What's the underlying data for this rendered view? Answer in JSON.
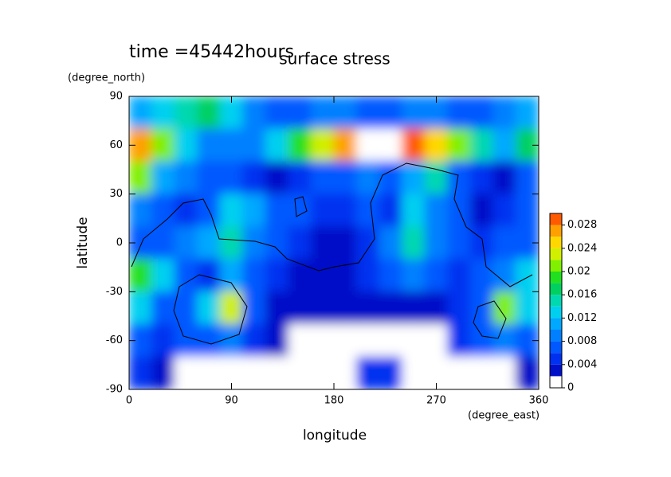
{
  "chart_data": {
    "type": "contour",
    "time_label": "time =45442hours",
    "title": "surface stress",
    "y_units": "(degree_north)",
    "x_units": "(degree_east)",
    "xlabel": "longitude",
    "ylabel": "latitude",
    "xlim": [
      0,
      360
    ],
    "ylim": [
      -90,
      90
    ],
    "xticks": [
      0,
      90,
      180,
      270,
      360
    ],
    "yticks": [
      -90,
      -60,
      -30,
      0,
      30,
      60,
      90
    ],
    "lon": [
      0,
      20,
      40,
      60,
      80,
      100,
      120,
      140,
      160,
      180,
      200,
      220,
      240,
      260,
      280,
      300,
      320,
      340,
      360
    ],
    "lat": [
      90,
      70,
      50,
      30,
      10,
      -10,
      -30,
      -50,
      -70,
      -90
    ],
    "z": [
      [
        0.01,
        0.012,
        0.014,
        0.016,
        0.012,
        0.008,
        0.006,
        0.006,
        0.008,
        0.008,
        0.006,
        0.006,
        0.008,
        0.008,
        0.006,
        0.006,
        0.008,
        0.01
      ],
      [
        0.026,
        0.02,
        0.012,
        0.008,
        0.008,
        0.008,
        0.012,
        0.018,
        0.022,
        0.026,
        0.032,
        0.032,
        0.028,
        0.024,
        0.02,
        0.014,
        0.01,
        0.016
      ],
      [
        0.02,
        0.01,
        0.008,
        0.006,
        0.006,
        0.004,
        0.002,
        0.004,
        0.006,
        0.006,
        0.008,
        0.006,
        0.01,
        0.014,
        0.006,
        0.004,
        0.002,
        0.006
      ],
      [
        0.008,
        0.006,
        0.004,
        0.006,
        0.012,
        0.01,
        0.006,
        0.006,
        0.004,
        0.004,
        0.006,
        0.004,
        0.012,
        0.008,
        0.006,
        0.002,
        0.004,
        0.006
      ],
      [
        0.006,
        0.006,
        0.008,
        0.01,
        0.014,
        0.008,
        0.006,
        0.004,
        0.002,
        0.002,
        0.004,
        0.008,
        0.014,
        0.008,
        0.006,
        0.004,
        0.006,
        0.006
      ],
      [
        0.018,
        0.012,
        0.006,
        0.004,
        0.01,
        0.006,
        0.004,
        0.002,
        0.002,
        0.002,
        0.004,
        0.006,
        0.008,
        0.006,
        0.004,
        0.006,
        0.008,
        0.012
      ],
      [
        0.012,
        0.006,
        0.006,
        0.012,
        0.022,
        0.006,
        0.002,
        0.002,
        0.002,
        0.002,
        0.002,
        0.002,
        0.002,
        0.002,
        0.004,
        0.006,
        0.02,
        0.012
      ],
      [
        0.006,
        0.004,
        0.006,
        0.006,
        0.008,
        0.004,
        0.002,
        0,
        0,
        0,
        0,
        0,
        0,
        0,
        0.004,
        0.006,
        0.008,
        0.006
      ],
      [
        0.004,
        0.002,
        0,
        0,
        0,
        0,
        0,
        0,
        0,
        0,
        0.004,
        0.004,
        0,
        0,
        0,
        0,
        0,
        0.002
      ]
    ],
    "levels": [
      0,
      0.002,
      0.004,
      0.006,
      0.008,
      0.01,
      0.012,
      0.014,
      0.016,
      0.018,
      0.02,
      0.022,
      0.024,
      0.026,
      0.028,
      0.03
    ],
    "colors": [
      "#ffffff",
      "#0010c8",
      "#0030f0",
      "#0058ff",
      "#0080ff",
      "#00a8ff",
      "#00d0f0",
      "#00d8b0",
      "#00d060",
      "#20e020",
      "#80f000",
      "#d0f000",
      "#ffd800",
      "#ffa000",
      "#ff5a00"
    ],
    "over_color": "#ffffff",
    "colorbar_ticks": [
      0,
      0.004,
      0.008,
      0.012,
      0.016,
      0.02,
      0.024,
      0.028
    ]
  }
}
